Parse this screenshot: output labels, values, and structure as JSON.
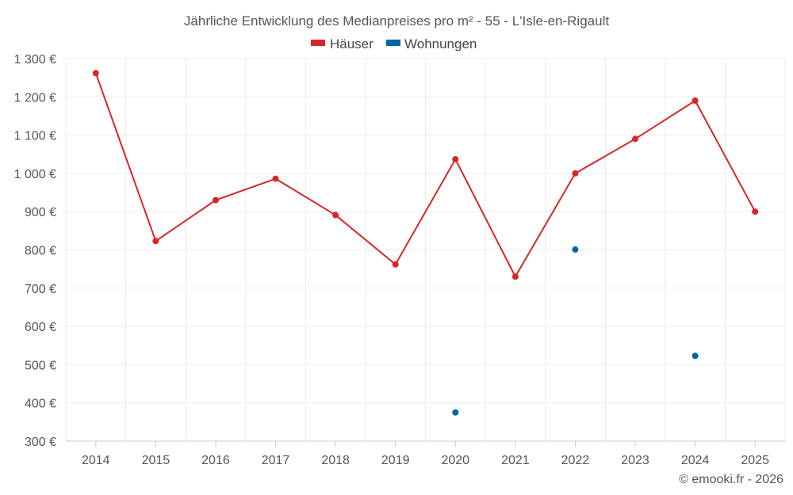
{
  "chart_data": {
    "type": "line",
    "title": "Jährliche Entwicklung des Medianpreises pro m² - 55 - L'Isle-en-Rigault",
    "xlabel": "",
    "ylabel": "",
    "categories": [
      "2014",
      "2015",
      "2016",
      "2017",
      "2018",
      "2019",
      "2020",
      "2021",
      "2022",
      "2023",
      "2024",
      "2025"
    ],
    "ylim": [
      300,
      1300
    ],
    "yticks": [
      300,
      400,
      500,
      600,
      700,
      800,
      900,
      1000,
      1100,
      1200,
      1300
    ],
    "ytick_labels": [
      "300 €",
      "400 €",
      "500 €",
      "600 €",
      "700 €",
      "800 €",
      "900 €",
      "1 000 €",
      "1 100 €",
      "1 200 €",
      "1 300 €"
    ],
    "grid": true,
    "legend_position": "top-center",
    "series": [
      {
        "name": "Häuser",
        "color": "#d62728",
        "style": "line-markers",
        "values": [
          1262,
          823,
          930,
          986,
          891,
          762,
          1037,
          730,
          1000,
          1090,
          1190,
          900
        ]
      },
      {
        "name": "Wohnungen",
        "color": "#0066a1",
        "style": "markers",
        "values": [
          null,
          null,
          null,
          null,
          null,
          null,
          375,
          null,
          801,
          null,
          523,
          null
        ]
      }
    ],
    "credit": "© emooki.fr - 2026"
  }
}
